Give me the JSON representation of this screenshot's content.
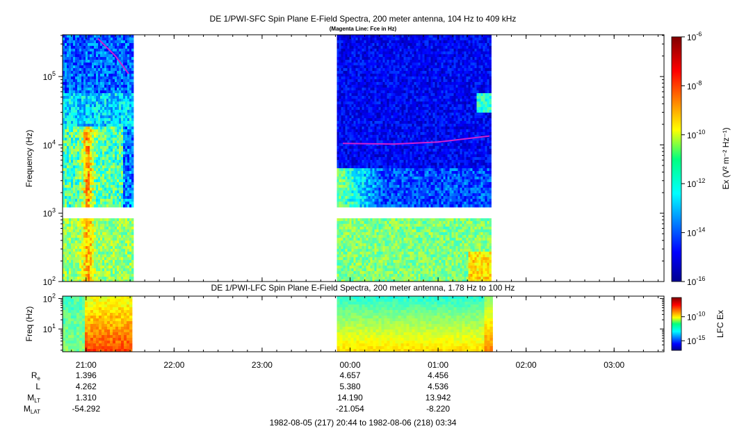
{
  "sfc_panel": {
    "title": "DE 1/PWI-SFC  Spin Plane E-Field Spectra, 200 meter antenna, 104 Hz to 409 kHz",
    "subtitle": "(Magenta Line: Fce in Hz)",
    "ylabel": "Frequency (Hz)",
    "yticks": [
      {
        "base": "10",
        "exp": "2",
        "value": 100
      },
      {
        "base": "10",
        "exp": "3",
        "value": 1000
      },
      {
        "base": "10",
        "exp": "4",
        "value": 10000
      },
      {
        "base": "10",
        "exp": "5",
        "value": 100000
      }
    ],
    "ylim": [
      100,
      409000
    ],
    "colorbar_label": "Ex (V² m⁻² Hz⁻¹)",
    "colorbar_ticks": [
      {
        "base": "10",
        "exp": "-6",
        "value": -6
      },
      {
        "base": "10",
        "exp": "-8",
        "value": -8
      },
      {
        "base": "10",
        "exp": "-10",
        "value": -10
      },
      {
        "base": "10",
        "exp": "-12",
        "value": -12
      },
      {
        "base": "10",
        "exp": "-14",
        "value": -14
      },
      {
        "base": "10",
        "exp": "-16",
        "value": -16
      }
    ],
    "colorbar_range": [
      -16,
      -6
    ]
  },
  "lfc_panel": {
    "title": "DE 1/PWI-LFC  Spin Plane E-Field Spectra, 200 meter antenna, 1.78 Hz to 100 Hz",
    "ylabel": "Freq (Hz)",
    "yticks": [
      {
        "base": "10",
        "exp": "1",
        "value": 10
      },
      {
        "base": "10",
        "exp": "2",
        "value": 100
      }
    ],
    "ylim": [
      1.78,
      120
    ],
    "colorbar_label": "LFC Ex",
    "colorbar_ticks": [
      {
        "base": "10",
        "exp": "-10",
        "value": -10
      },
      {
        "base": "10",
        "exp": "-15",
        "value": -15
      }
    ],
    "colorbar_range": [
      -17,
      -6
    ]
  },
  "time_axis": {
    "start_hours": 20.733,
    "end_hours": 27.567,
    "ticks": [
      {
        "label": "21:00",
        "hours": 21
      },
      {
        "label": "22:00",
        "hours": 22
      },
      {
        "label": "23:00",
        "hours": 23
      },
      {
        "label": "00:00",
        "hours": 24
      },
      {
        "label": "01:00",
        "hours": 25
      },
      {
        "label": "02:00",
        "hours": 26
      },
      {
        "label": "03:00",
        "hours": 27
      }
    ],
    "range_label": "1982-08-05 (217) 20:44 to 1982-08-06 (218) 03:34"
  },
  "ephemeris": {
    "rows": [
      {
        "name": "R",
        "sub": "e",
        "values": [
          {
            "hours": 21,
            "text": "1.396"
          },
          {
            "hours": 24,
            "text": "4.657"
          },
          {
            "hours": 25,
            "text": "4.456"
          }
        ]
      },
      {
        "name": "L",
        "sub": "",
        "values": [
          {
            "hours": 21,
            "text": "4.262"
          },
          {
            "hours": 24,
            "text": "5.380"
          },
          {
            "hours": 25,
            "text": "4.536"
          }
        ]
      },
      {
        "name": "M",
        "sub": "LT",
        "values": [
          {
            "hours": 21,
            "text": "1.310"
          },
          {
            "hours": 24,
            "text": "14.190"
          },
          {
            "hours": 25,
            "text": "13.942"
          }
        ]
      },
      {
        "name": "M",
        "sub": "LAT",
        "values": [
          {
            "hours": 21,
            "text": "-54.292"
          },
          {
            "hours": 24,
            "text": "-21.054"
          },
          {
            "hours": 25,
            "text": "-8.220"
          }
        ]
      }
    ]
  },
  "chart_data": [
    {
      "type": "heatmap",
      "title": "DE 1/PWI-SFC  Spin Plane E-Field Spectra, 200 meter antenna, 104 Hz to 409 kHz",
      "subtitle": "(Magenta Line: Fce in Hz)",
      "ylabel": "Frequency (Hz)",
      "yscale": "log",
      "ylim": [
        100,
        409000
      ],
      "color_scale_log10": [
        -16,
        -6
      ],
      "data_intervals": [
        {
          "start": "20:44",
          "end": "21:31"
        },
        {
          "start": "23:51",
          "end": "01:36"
        }
      ],
      "gap_frequency_hz": 1000,
      "fce_line": [
        {
          "x": "21:08",
          "y": 360000
        },
        {
          "x": "21:20",
          "y": 200000
        },
        {
          "x": "21:29",
          "y": 110000
        },
        {
          "x": "23:55",
          "y": 10500
        },
        {
          "x": "00:30",
          "y": 10300
        },
        {
          "x": "01:00",
          "y": 11000
        },
        {
          "x": "01:35",
          "y": 13500
        }
      ],
      "fce_color": "#d020d0"
    },
    {
      "type": "heatmap",
      "title": "DE 1/PWI-LFC  Spin Plane E-Field Spectra, 200 meter antenna, 1.78 Hz to 100 Hz",
      "ylabel": "Freq (Hz)",
      "yscale": "log",
      "ylim": [
        1.78,
        120
      ],
      "data_intervals": [
        {
          "start": "20:44",
          "end": "21:31"
        },
        {
          "start": "23:51",
          "end": "01:36"
        }
      ]
    }
  ]
}
